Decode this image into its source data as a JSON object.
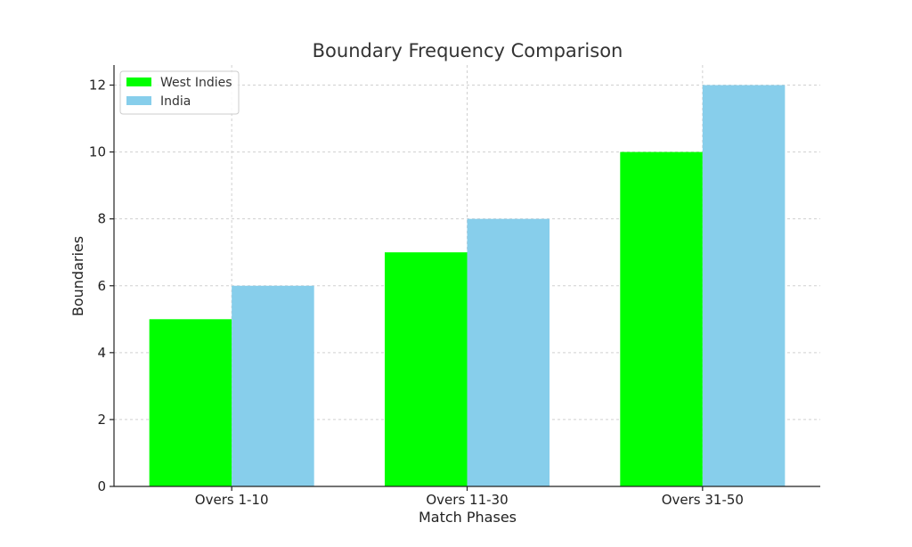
{
  "chart_data": {
    "type": "bar",
    "title": "Boundary Frequency Comparison",
    "xlabel": "Match Phases",
    "ylabel": "Boundaries",
    "categories": [
      "Overs 1-10",
      "Overs 11-30",
      "Overs 31-50"
    ],
    "series": [
      {
        "name": "West Indies",
        "color": "#00ff00",
        "values": [
          5,
          7,
          10
        ]
      },
      {
        "name": "India",
        "color": "#87ceeb",
        "values": [
          6,
          8,
          12
        ]
      }
    ],
    "ylim": [
      0,
      12.6
    ],
    "yticks": [
      0,
      2,
      4,
      6,
      8,
      10,
      12
    ],
    "grid": true,
    "legend_position": "top-left"
  }
}
